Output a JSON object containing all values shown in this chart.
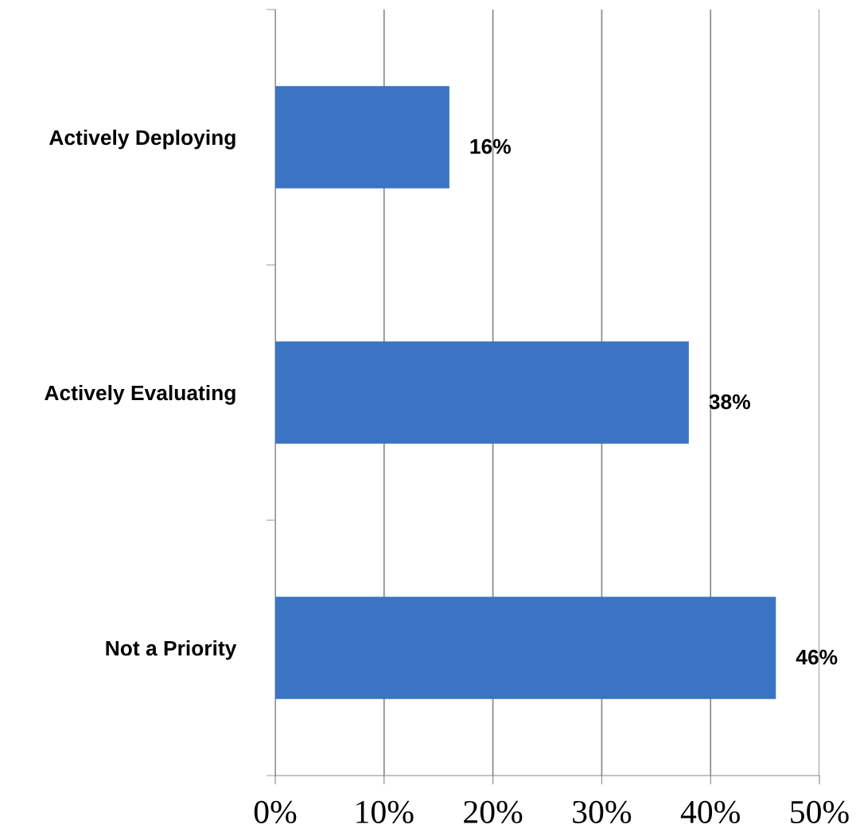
{
  "chart_data": {
    "type": "bar",
    "orientation": "horizontal",
    "categories": [
      "Actively Deploying",
      "Actively Evaluating",
      "Not a Priority"
    ],
    "values": [
      16,
      38,
      46
    ],
    "value_labels": [
      "16%",
      "38%",
      "46%"
    ],
    "color": "#3a74c2",
    "xlim": [
      0,
      50
    ],
    "xticks": [
      {
        "value": 0,
        "label": "0%"
      },
      {
        "value": 10,
        "label": "10%"
      },
      {
        "value": 20,
        "label": "20%"
      },
      {
        "value": 30,
        "label": "30%"
      },
      {
        "value": 40,
        "label": "40%"
      },
      {
        "value": 50,
        "label": "50%"
      }
    ],
    "grid": "x",
    "legend": false
  }
}
